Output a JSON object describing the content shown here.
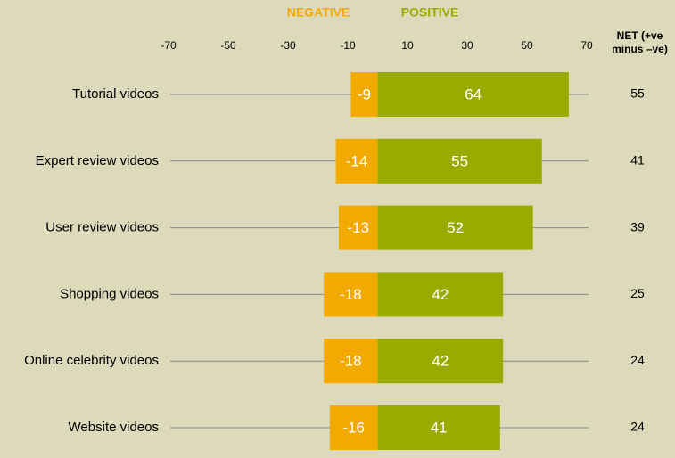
{
  "chart_data": {
    "type": "diverging-bar",
    "categories": [
      "Tutorial videos",
      "Expert review videos",
      "User review videos",
      "Shopping videos",
      "Online celebrity videos",
      "Website videos"
    ],
    "series": [
      {
        "name": "NEGATIVE",
        "color": "#f2a900",
        "values": [
          -9,
          -14,
          -13,
          -18,
          -18,
          -16
        ]
      },
      {
        "name": "POSITIVE",
        "color": "#9aab00",
        "values": [
          64,
          55,
          52,
          42,
          42,
          41
        ]
      }
    ],
    "net": {
      "header": "NET (+ve minus –ve)",
      "values": [
        55,
        41,
        39,
        25,
        24,
        24
      ]
    },
    "xlim": [
      -70,
      70
    ],
    "xticks": [
      -70,
      -50,
      -30,
      -10,
      10,
      30,
      50,
      70
    ]
  }
}
